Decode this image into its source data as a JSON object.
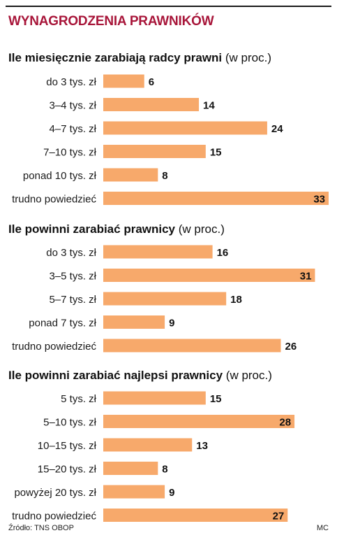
{
  "title": "WYNAGRODZENIA PRAWNIKÓW",
  "colors": {
    "bar": "#f7a96b",
    "title": "#a8163a",
    "text": "#1a1a1a"
  },
  "footer": {
    "source": "Źródło: TNS OBOP",
    "author": "MC"
  },
  "chart_data": [
    {
      "type": "bar",
      "orientation": "horizontal",
      "title": "Ile miesięcznie zarabiają radcy prawni",
      "unit": "(w proc.)",
      "categories": [
        "do 3 tys. zł",
        "3–4 tys. zł",
        "4–7 tys. zł",
        "7–10 tys. zł",
        "ponad 10 tys. zł",
        "trudno powiedzieć"
      ],
      "values": [
        6,
        14,
        24,
        15,
        8,
        33
      ],
      "xlim": [
        0,
        33
      ]
    },
    {
      "type": "bar",
      "orientation": "horizontal",
      "title": "Ile powinni zarabiać prawnicy",
      "unit": "(w proc.)",
      "categories": [
        "do 3 tys. zł",
        "3–5 tys. zł",
        "5–7 tys. zł",
        "ponad 7 tys. zł",
        "trudno powiedzieć"
      ],
      "values": [
        16,
        31,
        18,
        9,
        26
      ],
      "xlim": [
        0,
        33
      ]
    },
    {
      "type": "bar",
      "orientation": "horizontal",
      "title": "Ile powinni zarabiać najlepsi prawnicy",
      "unit": "(w proc.)",
      "categories": [
        "5 tys. zł",
        "5–10 tys. zł",
        "10–15 tys. zł",
        "15–20 tys. zł",
        "powyżej 20 tys. zł",
        "trudno powiedzieć"
      ],
      "values": [
        15,
        28,
        13,
        8,
        9,
        27
      ],
      "xlim": [
        0,
        33
      ]
    }
  ]
}
